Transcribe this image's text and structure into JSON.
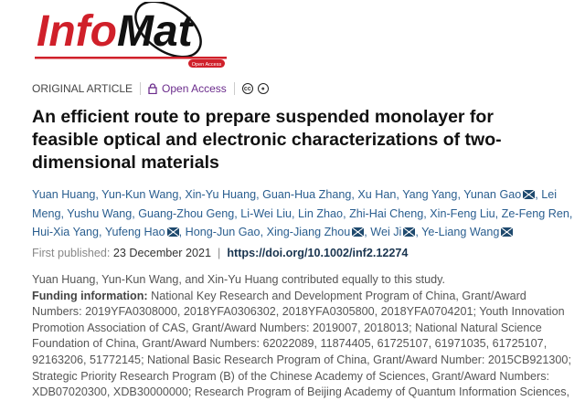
{
  "journal": {
    "logo_text_red": "Info",
    "logo_text_black": "Mat",
    "logo_badge": "Open Access",
    "brand_red": "#d0202a"
  },
  "meta": {
    "article_type": "ORIGINAL ARTICLE",
    "access": "Open Access",
    "icons": [
      "lock-icon",
      "creative-commons-icon",
      "attribution-icon"
    ],
    "cc_label": "cc"
  },
  "title": "An efficient route to prepare suspended monolayer for feasible optical and electronic characterizations of two-dimensional materials",
  "authors": [
    {
      "name": "Yuan Huang",
      "email": false
    },
    {
      "name": "Yun-Kun Wang",
      "email": false
    },
    {
      "name": "Xin-Yu Huang",
      "email": false
    },
    {
      "name": "Guan-Hua Zhang",
      "email": false
    },
    {
      "name": "Xu Han",
      "email": false
    },
    {
      "name": "Yang Yang",
      "email": false
    },
    {
      "name": "Yunan Gao",
      "email": true
    },
    {
      "name": "Lei Meng",
      "email": false
    },
    {
      "name": "Yushu Wang",
      "email": false
    },
    {
      "name": "Guang-Zhou Geng",
      "email": false
    },
    {
      "name": "Li-Wei Liu",
      "email": false
    },
    {
      "name": "Lin Zhao",
      "email": false
    },
    {
      "name": "Zhi-Hai Cheng",
      "email": false
    },
    {
      "name": "Xin-Feng Liu",
      "email": false
    },
    {
      "name": "Ze-Feng Ren",
      "email": false
    },
    {
      "name": "Hui-Xia Yang",
      "email": false
    },
    {
      "name": "Yufeng Hao",
      "email": true
    },
    {
      "name": "Hong-Jun Gao",
      "email": false
    },
    {
      "name": "Xing-Jiang Zhou",
      "email": true
    },
    {
      "name": "Wei Ji",
      "email": true
    },
    {
      "name": "Ye-Liang Wang",
      "email": true
    }
  ],
  "published": {
    "label": "First published:",
    "date": "23 December 2021",
    "separator": "|",
    "doi": "https://doi.org/10.1002/inf2.12274"
  },
  "contribution": "Yuan Huang, Yun-Kun Wang, and Xin-Yu Huang contributed equally to this study.",
  "funding": {
    "label": "Funding information:",
    "lines": [
      " National Key Research and Development Program of China, Grant/Award",
      "Numbers: 2019YFA0308000, 2018YFA0306302, 2018YFA0305800, 2018YFA0704201; Youth Innovation",
      "Promotion Association of CAS, Grant/Award Numbers: 2019007, 2018013; National Natural Science",
      "Foundation of China, Grant/Award Numbers: 62022089, 11874405, 61725107, 61971035, 61725107,",
      "92163206, 51772145; National Basic Research Program of China, Grant/Award Number: 2015CB921300;",
      "Strategic Priority Research Program (B) of the Chinese Academy of Sciences, Grant/Award Numbers:",
      "XDB07020300, XDB30000000; Research Program of Beijing Academy of Quantum Information Sciences,"
    ]
  }
}
